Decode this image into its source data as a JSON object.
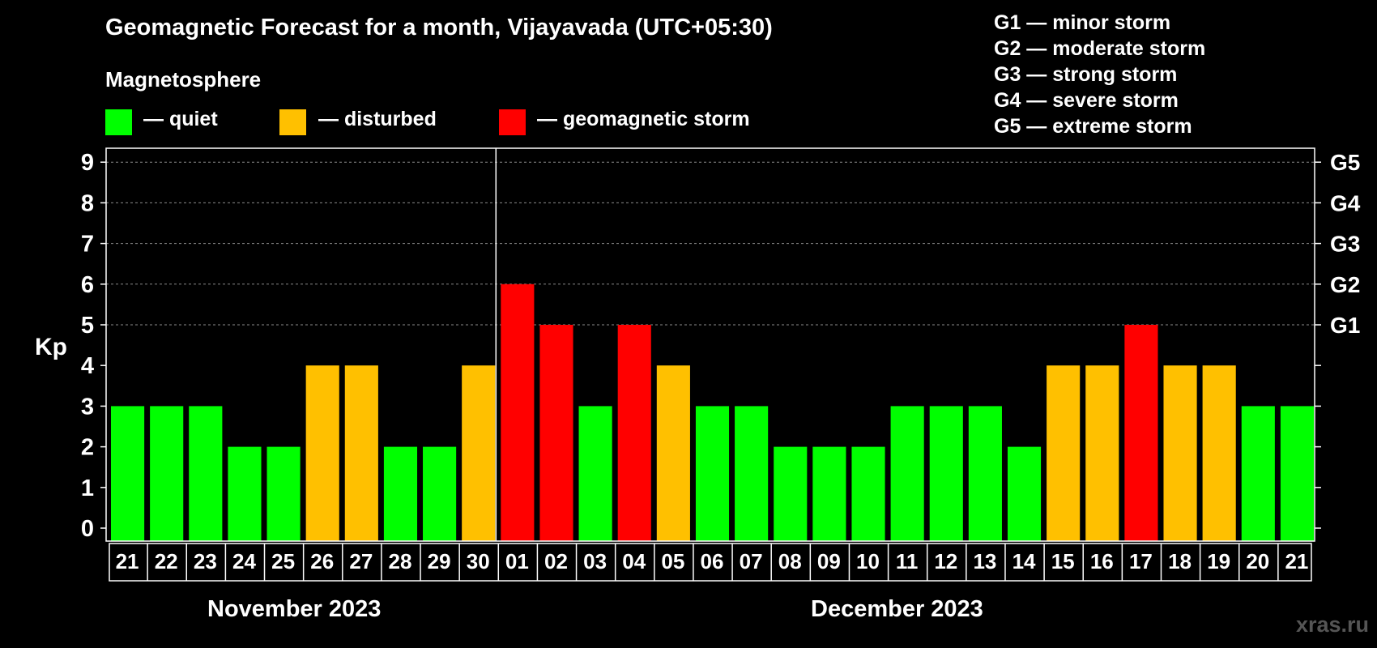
{
  "title": "Geomagnetic Forecast for a month, Vijayavada (UTC+05:30)",
  "subtitle": "Magnetosphere",
  "legend": {
    "quiet": {
      "label": "— quiet",
      "color": "#00FF00"
    },
    "disturbed": {
      "label": "— disturbed",
      "color": "#FFC000"
    },
    "storm": {
      "label": "— geomagnetic storm",
      "color": "#FF0000"
    }
  },
  "g_scale": [
    "G1 — minor storm",
    "G2 — moderate storm",
    "G3 — strong storm",
    "G4 — severe storm",
    "G5 — extreme storm"
  ],
  "watermark": "xras.ru",
  "months": [
    {
      "label": "November 2023"
    },
    {
      "label": "December 2023"
    }
  ],
  "chart_data": {
    "type": "bar",
    "ylabel": "Kp",
    "ylim": [
      0,
      9
    ],
    "yticks": [
      "0",
      "1",
      "2",
      "3",
      "4",
      "5",
      "6",
      "7",
      "8",
      "9"
    ],
    "right_ticks": [
      {
        "kp": 5,
        "label": "G1"
      },
      {
        "kp": 6,
        "label": "G2"
      },
      {
        "kp": 7,
        "label": "G3"
      },
      {
        "kp": 8,
        "label": "G4"
      },
      {
        "kp": 9,
        "label": "G5"
      }
    ],
    "grid_dashed_at": [
      5,
      6,
      7,
      8,
      9
    ],
    "categories": [
      "21",
      "22",
      "23",
      "24",
      "25",
      "26",
      "27",
      "28",
      "29",
      "30",
      "01",
      "02",
      "03",
      "04",
      "05",
      "06",
      "07",
      "08",
      "09",
      "10",
      "11",
      "12",
      "13",
      "14",
      "15",
      "16",
      "17",
      "18",
      "19",
      "20",
      "21"
    ],
    "values": [
      3,
      3,
      3,
      2,
      2,
      4,
      4,
      2,
      2,
      4,
      6,
      5,
      3,
      5,
      4,
      3,
      3,
      2,
      2,
      2,
      3,
      3,
      3,
      2,
      4,
      4,
      5,
      4,
      4,
      3,
      3
    ],
    "status": [
      "quiet",
      "quiet",
      "quiet",
      "quiet",
      "quiet",
      "disturbed",
      "disturbed",
      "quiet",
      "quiet",
      "disturbed",
      "storm",
      "storm",
      "quiet",
      "storm",
      "disturbed",
      "quiet",
      "quiet",
      "quiet",
      "quiet",
      "quiet",
      "quiet",
      "quiet",
      "quiet",
      "quiet",
      "disturbed",
      "disturbed",
      "storm",
      "disturbed",
      "disturbed",
      "quiet",
      "quiet"
    ],
    "month_boundary_after_index": 9
  }
}
